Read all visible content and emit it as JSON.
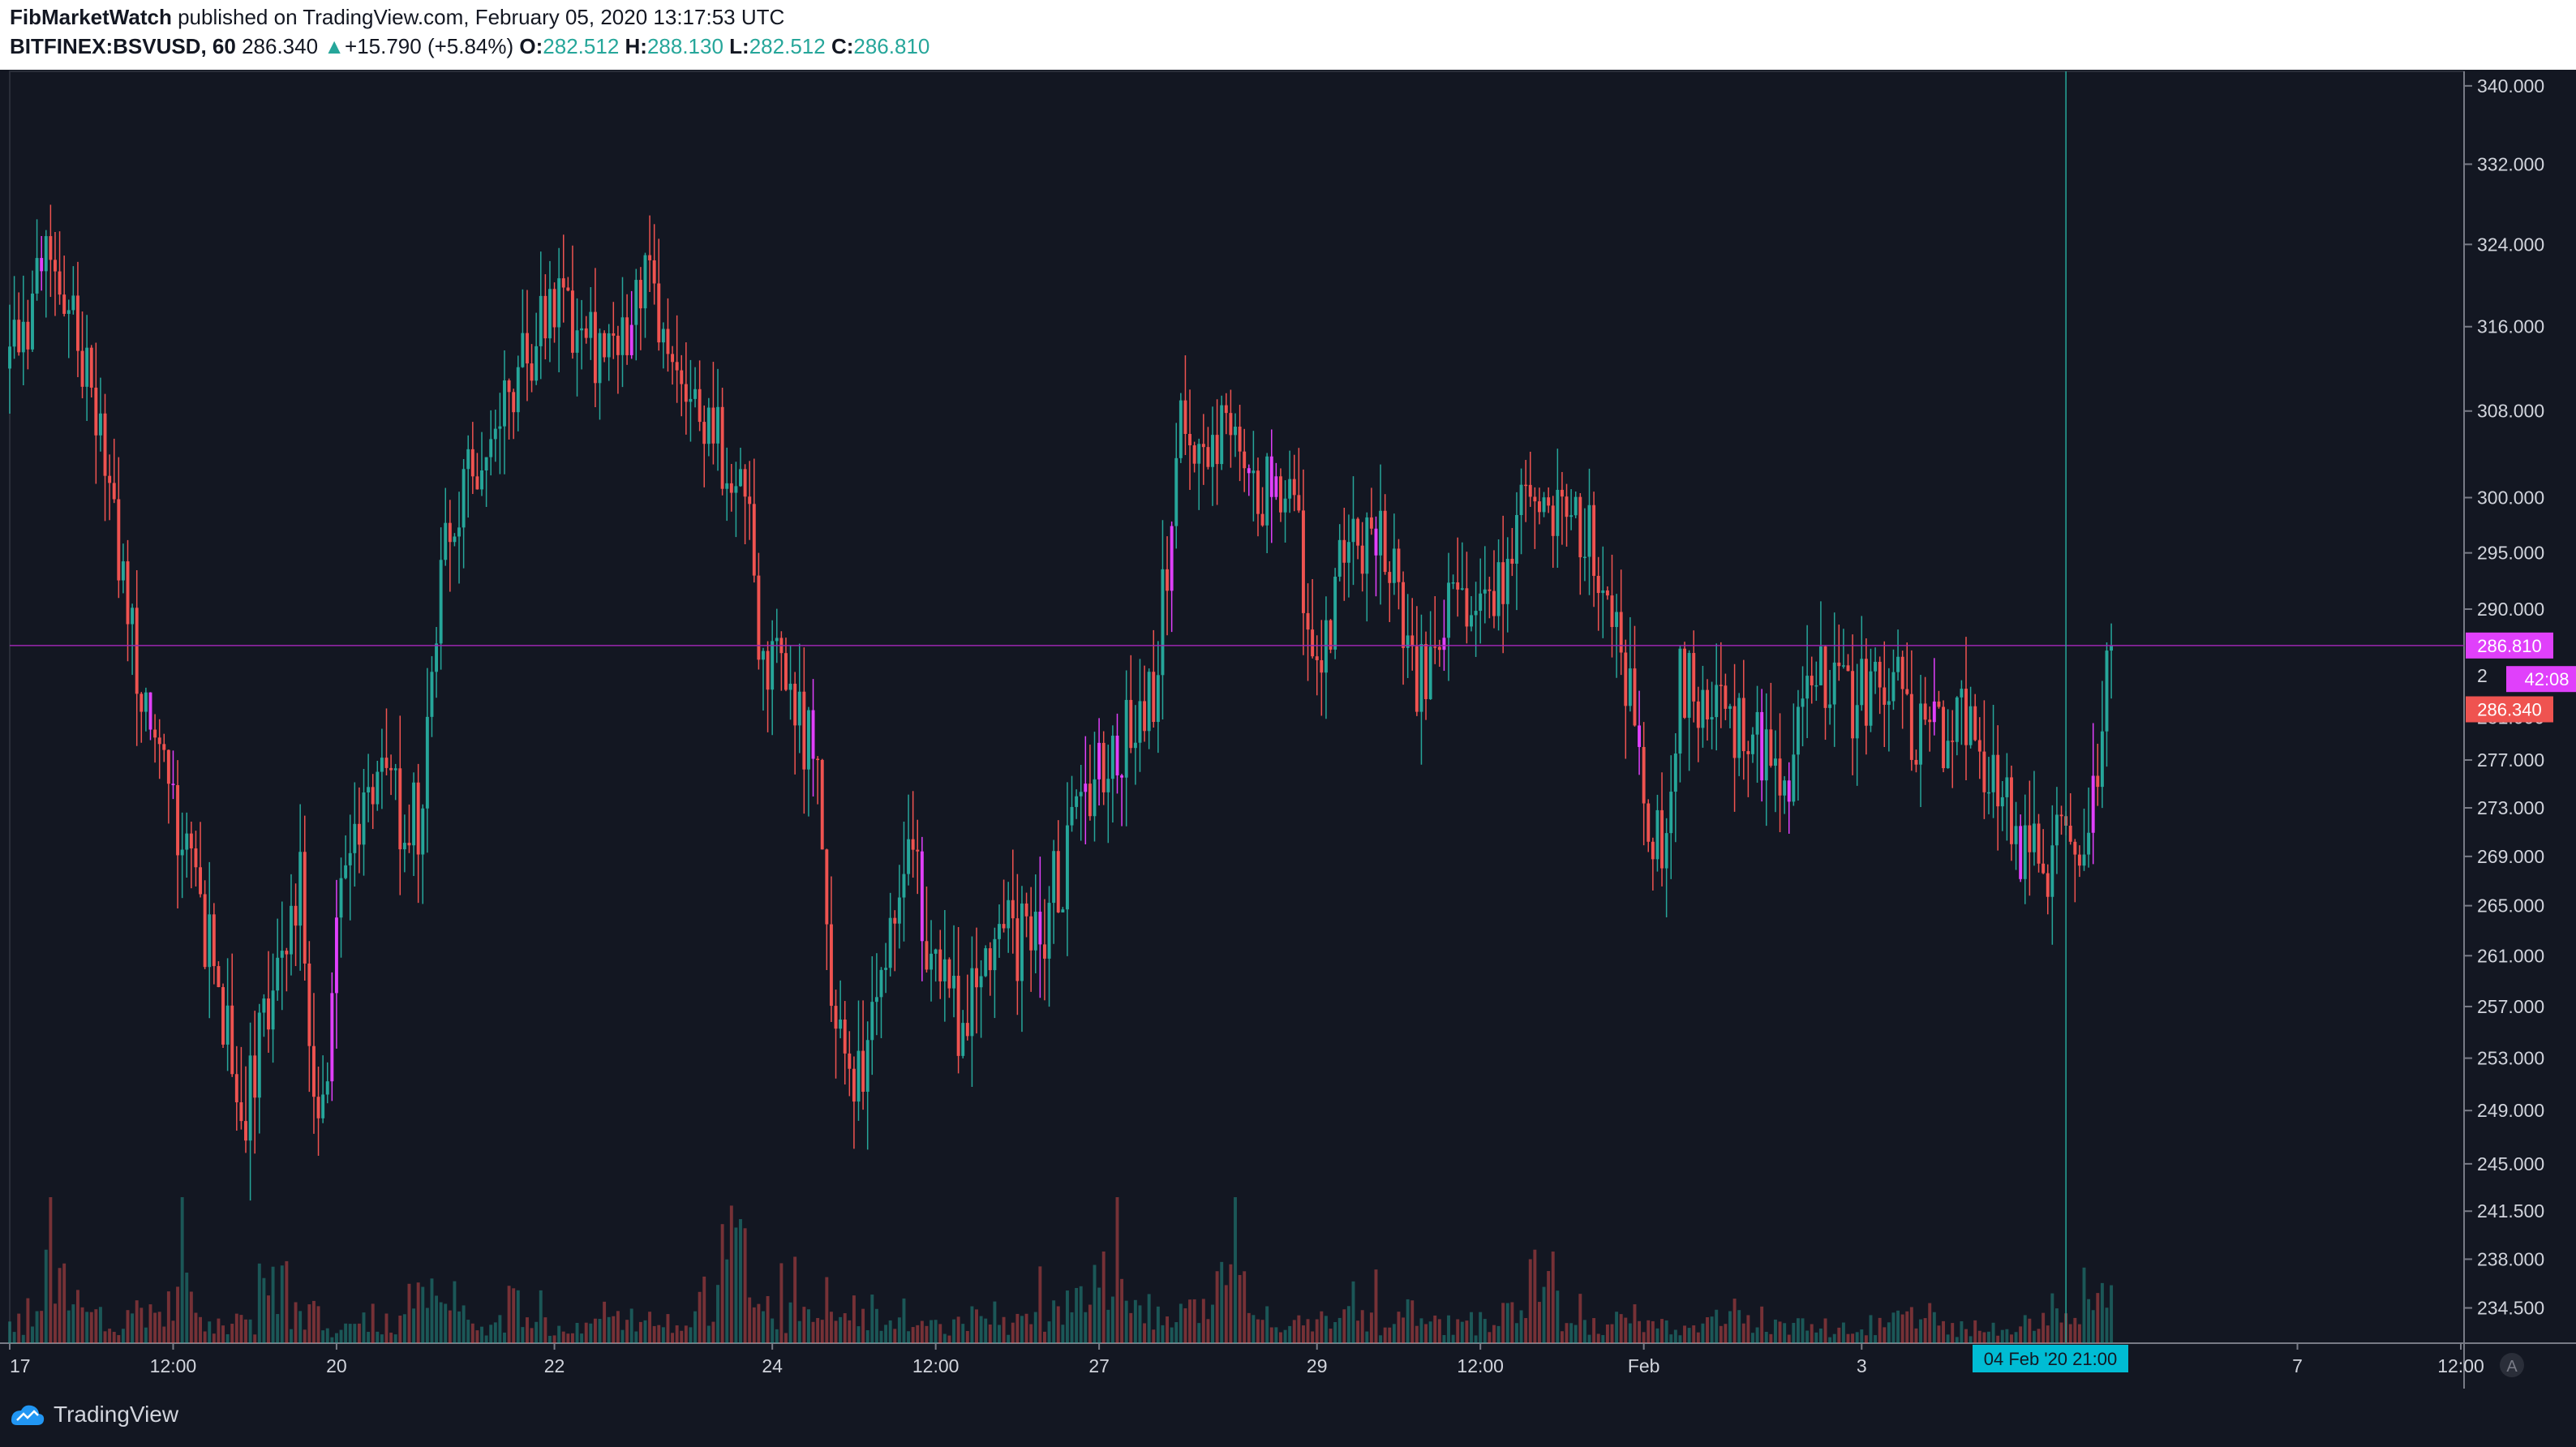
{
  "header": {
    "author": "FibMarketWatch",
    "published_text": " published on TradingView.com, February 05, 2020 13:17:53 UTC",
    "symbol": "BITFINEX:BSVUSD, 60",
    "last_price": "286.340",
    "change_arrow": "▲",
    "change": "+15.790 (+5.84%)",
    "o_label": "O:",
    "o_value": "282.512",
    "h_label": "H:",
    "h_value": "288.130",
    "l_label": "L:",
    "l_value": "282.512",
    "c_label": "C:",
    "c_value": "286.810"
  },
  "footer": {
    "brand": "TradingView",
    "scale_mode": "A"
  },
  "colors": {
    "background": "#131722",
    "up": "#26a69a",
    "down": "#ef5350",
    "highlight": "#e040fb",
    "price_line": "#9c27b0",
    "crosshair": "#26a69a",
    "grid": "#2a2e39",
    "axis_text": "#d1d4dc"
  },
  "chart_data": {
    "type": "candlestick",
    "symbol": "BITFINEX:BSVUSD",
    "interval": "60",
    "y_axis": {
      "scale": "log",
      "ylim": [
        232,
        341.5
      ],
      "ticks": [
        340.0,
        332.0,
        324.0,
        316.0,
        308.0,
        300.0,
        295.0,
        290.0,
        277.0,
        273.0,
        269.0,
        265.0,
        261.0,
        257.0,
        253.0,
        249.0,
        245.0,
        241.5,
        238.0,
        234.5
      ],
      "tick_labels": [
        "340.000",
        "332.000",
        "324.000",
        "316.000",
        "308.000",
        "300.000",
        "295.000",
        "290.000",
        "277.000",
        "273.000",
        "269.000",
        "265.000",
        "261.000",
        "257.000",
        "253.000",
        "249.000",
        "245.000",
        "241.500",
        "238.000",
        "234.500"
      ]
    },
    "x_axis": {
      "start": "2020-01-17 00:00",
      "end": "2020-02-08 12:00",
      "ticks": [
        {
          "label": "17",
          "t": "2020-01-17 00:00"
        },
        {
          "label": "12:00",
          "t": "2020-01-18 12:00"
        },
        {
          "label": "20",
          "t": "2020-01-20 00:00"
        },
        {
          "label": "22",
          "t": "2020-01-22 00:00"
        },
        {
          "label": "24",
          "t": "2020-01-24 00:00"
        },
        {
          "label": "12:00",
          "t": "2020-01-25 12:00"
        },
        {
          "label": "27",
          "t": "2020-01-27 00:00"
        },
        {
          "label": "29",
          "t": "2020-01-29 00:00"
        },
        {
          "label": "12:00",
          "t": "2020-01-30 12:00"
        },
        {
          "label": "Feb",
          "t": "2020-02-01 00:00"
        },
        {
          "label": "3",
          "t": "2020-02-03 00:00"
        },
        {
          "label": "7",
          "t": "2020-02-07 00:00"
        },
        {
          "label": "12:00",
          "t": "2020-02-08 12:00"
        }
      ]
    },
    "series_points": [
      {
        "t": "2020-01-17 00:00",
        "price": 312
      },
      {
        "t": "2020-01-17 10:00",
        "price": 324
      },
      {
        "t": "2020-01-17 20:00",
        "price": 305
      },
      {
        "t": "2020-01-18 04:00",
        "price": 284
      },
      {
        "t": "2020-01-18 12:00",
        "price": 272
      },
      {
        "t": "2020-01-18 20:00",
        "price": 262
      },
      {
        "t": "2020-01-19 04:00",
        "price": 250
      },
      {
        "t": "2020-01-19 10:00",
        "price": 258
      },
      {
        "t": "2020-01-19 16:00",
        "price": 268
      },
      {
        "t": "2020-01-19 20:00",
        "price": 246
      },
      {
        "t": "2020-01-20 00:00",
        "price": 262
      },
      {
        "t": "2020-01-20 06:00",
        "price": 275
      },
      {
        "t": "2020-01-20 18:00",
        "price": 272
      },
      {
        "t": "2020-01-21 00:00",
        "price": 298
      },
      {
        "t": "2020-01-21 12:00",
        "price": 308
      },
      {
        "t": "2020-01-22 00:00",
        "price": 318
      },
      {
        "t": "2020-01-22 12:00",
        "price": 312
      },
      {
        "t": "2020-01-22 20:00",
        "price": 320
      },
      {
        "t": "2020-01-23 04:00",
        "price": 312
      },
      {
        "t": "2020-01-23 12:00",
        "price": 305
      },
      {
        "t": "2020-01-23 18:00",
        "price": 300
      },
      {
        "t": "2020-01-23 22:00",
        "price": 285
      },
      {
        "t": "2020-01-24 04:00",
        "price": 283
      },
      {
        "t": "2020-01-24 10:00",
        "price": 276
      },
      {
        "t": "2020-01-24 14:00",
        "price": 255
      },
      {
        "t": "2020-01-24 20:00",
        "price": 252
      },
      {
        "t": "2020-01-25 02:00",
        "price": 262
      },
      {
        "t": "2020-01-25 06:00",
        "price": 270
      },
      {
        "t": "2020-01-25 10:00",
        "price": 262
      },
      {
        "t": "2020-01-25 16:00",
        "price": 256
      },
      {
        "t": "2020-01-26 00:00",
        "price": 261
      },
      {
        "t": "2020-01-26 12:00",
        "price": 264
      },
      {
        "t": "2020-01-26 20:00",
        "price": 272
      },
      {
        "t": "2020-01-27 04:00",
        "price": 278
      },
      {
        "t": "2020-01-27 12:00",
        "price": 283
      },
      {
        "t": "2020-01-27 18:00",
        "price": 306
      },
      {
        "t": "2020-01-28 04:00",
        "price": 305
      },
      {
        "t": "2020-01-28 10:00",
        "price": 300
      },
      {
        "t": "2020-01-28 18:00",
        "price": 302
      },
      {
        "t": "2020-01-29 00:00",
        "price": 284
      },
      {
        "t": "2020-01-29 06:00",
        "price": 295
      },
      {
        "t": "2020-01-29 14:00",
        "price": 298
      },
      {
        "t": "2020-01-29 22:00",
        "price": 284
      },
      {
        "t": "2020-01-30 06:00",
        "price": 290
      },
      {
        "t": "2020-01-30 16:00",
        "price": 292
      },
      {
        "t": "2020-01-30 22:00",
        "price": 303
      },
      {
        "t": "2020-01-31 06:00",
        "price": 298
      },
      {
        "t": "2020-01-31 12:00",
        "price": 298
      },
      {
        "t": "2020-01-31 20:00",
        "price": 285
      },
      {
        "t": "2020-02-01 00:00",
        "price": 273
      },
      {
        "t": "2020-02-01 04:00",
        "price": 270
      },
      {
        "t": "2020-02-01 08:00",
        "price": 284
      },
      {
        "t": "2020-02-01 16:00",
        "price": 281
      },
      {
        "t": "2020-02-02 00:00",
        "price": 279
      },
      {
        "t": "2020-02-02 08:00",
        "price": 276
      },
      {
        "t": "2020-02-02 14:00",
        "price": 284
      },
      {
        "t": "2020-02-02 22:00",
        "price": 282
      },
      {
        "t": "2020-02-03 06:00",
        "price": 284
      },
      {
        "t": "2020-02-03 12:00",
        "price": 279
      },
      {
        "t": "2020-02-03 22:00",
        "price": 280
      },
      {
        "t": "2020-02-04 06:00",
        "price": 276
      },
      {
        "t": "2020-02-04 10:00",
        "price": 269
      },
      {
        "t": "2020-02-04 16:00",
        "price": 268
      },
      {
        "t": "2020-02-04 20:00",
        "price": 271
      },
      {
        "t": "2020-02-05 00:00",
        "price": 269
      },
      {
        "t": "2020-02-05 04:00",
        "price": 278
      },
      {
        "t": "2020-02-05 06:00",
        "price": 286.81
      },
      {
        "t": "2020-02-05 07:00",
        "price": 286.81
      }
    ],
    "volume_relative": [
      0.2,
      0.6,
      0.35,
      0.2,
      0.3,
      0.45,
      0.25,
      0.2,
      0.5,
      0.3,
      0.15,
      0.25,
      0.2,
      0.4,
      0.25,
      0.2,
      0.35,
      0.2,
      0.15,
      0.3,
      0.25,
      0.2,
      0.4,
      0.9,
      0.3,
      0.25,
      0.2,
      0.3,
      0.2,
      0.15,
      0.2,
      0.25,
      0.2,
      0.3,
      0.35,
      0.6,
      0.3,
      0.25,
      0.3,
      0.5,
      0.25,
      0.2,
      0.2,
      0.25,
      0.2,
      0.3,
      0.2,
      0.2,
      0.25,
      0.6,
      0.3,
      0.2,
      0.2,
      0.15,
      0.2,
      0.3,
      0.2,
      0.15,
      0.15,
      0.15,
      0.2,
      0.3,
      0.15,
      0.15,
      0.15,
      0.3,
      0.4,
      0.4
    ],
    "last_price_line": 286.81,
    "price_labels": [
      {
        "text": "286.810",
        "price": 286.81,
        "style": "highlight"
      },
      {
        "text": "42:08",
        "price": 283.9,
        "style": "highlight"
      },
      {
        "text": "286.340",
        "price": 281.3,
        "style": "down"
      }
    ],
    "partially_hidden_labels": [
      "2",
      "281.000"
    ],
    "crosshair": {
      "t": "2020-02-04 21:00",
      "label": "04 Feb '20   21:00"
    }
  }
}
